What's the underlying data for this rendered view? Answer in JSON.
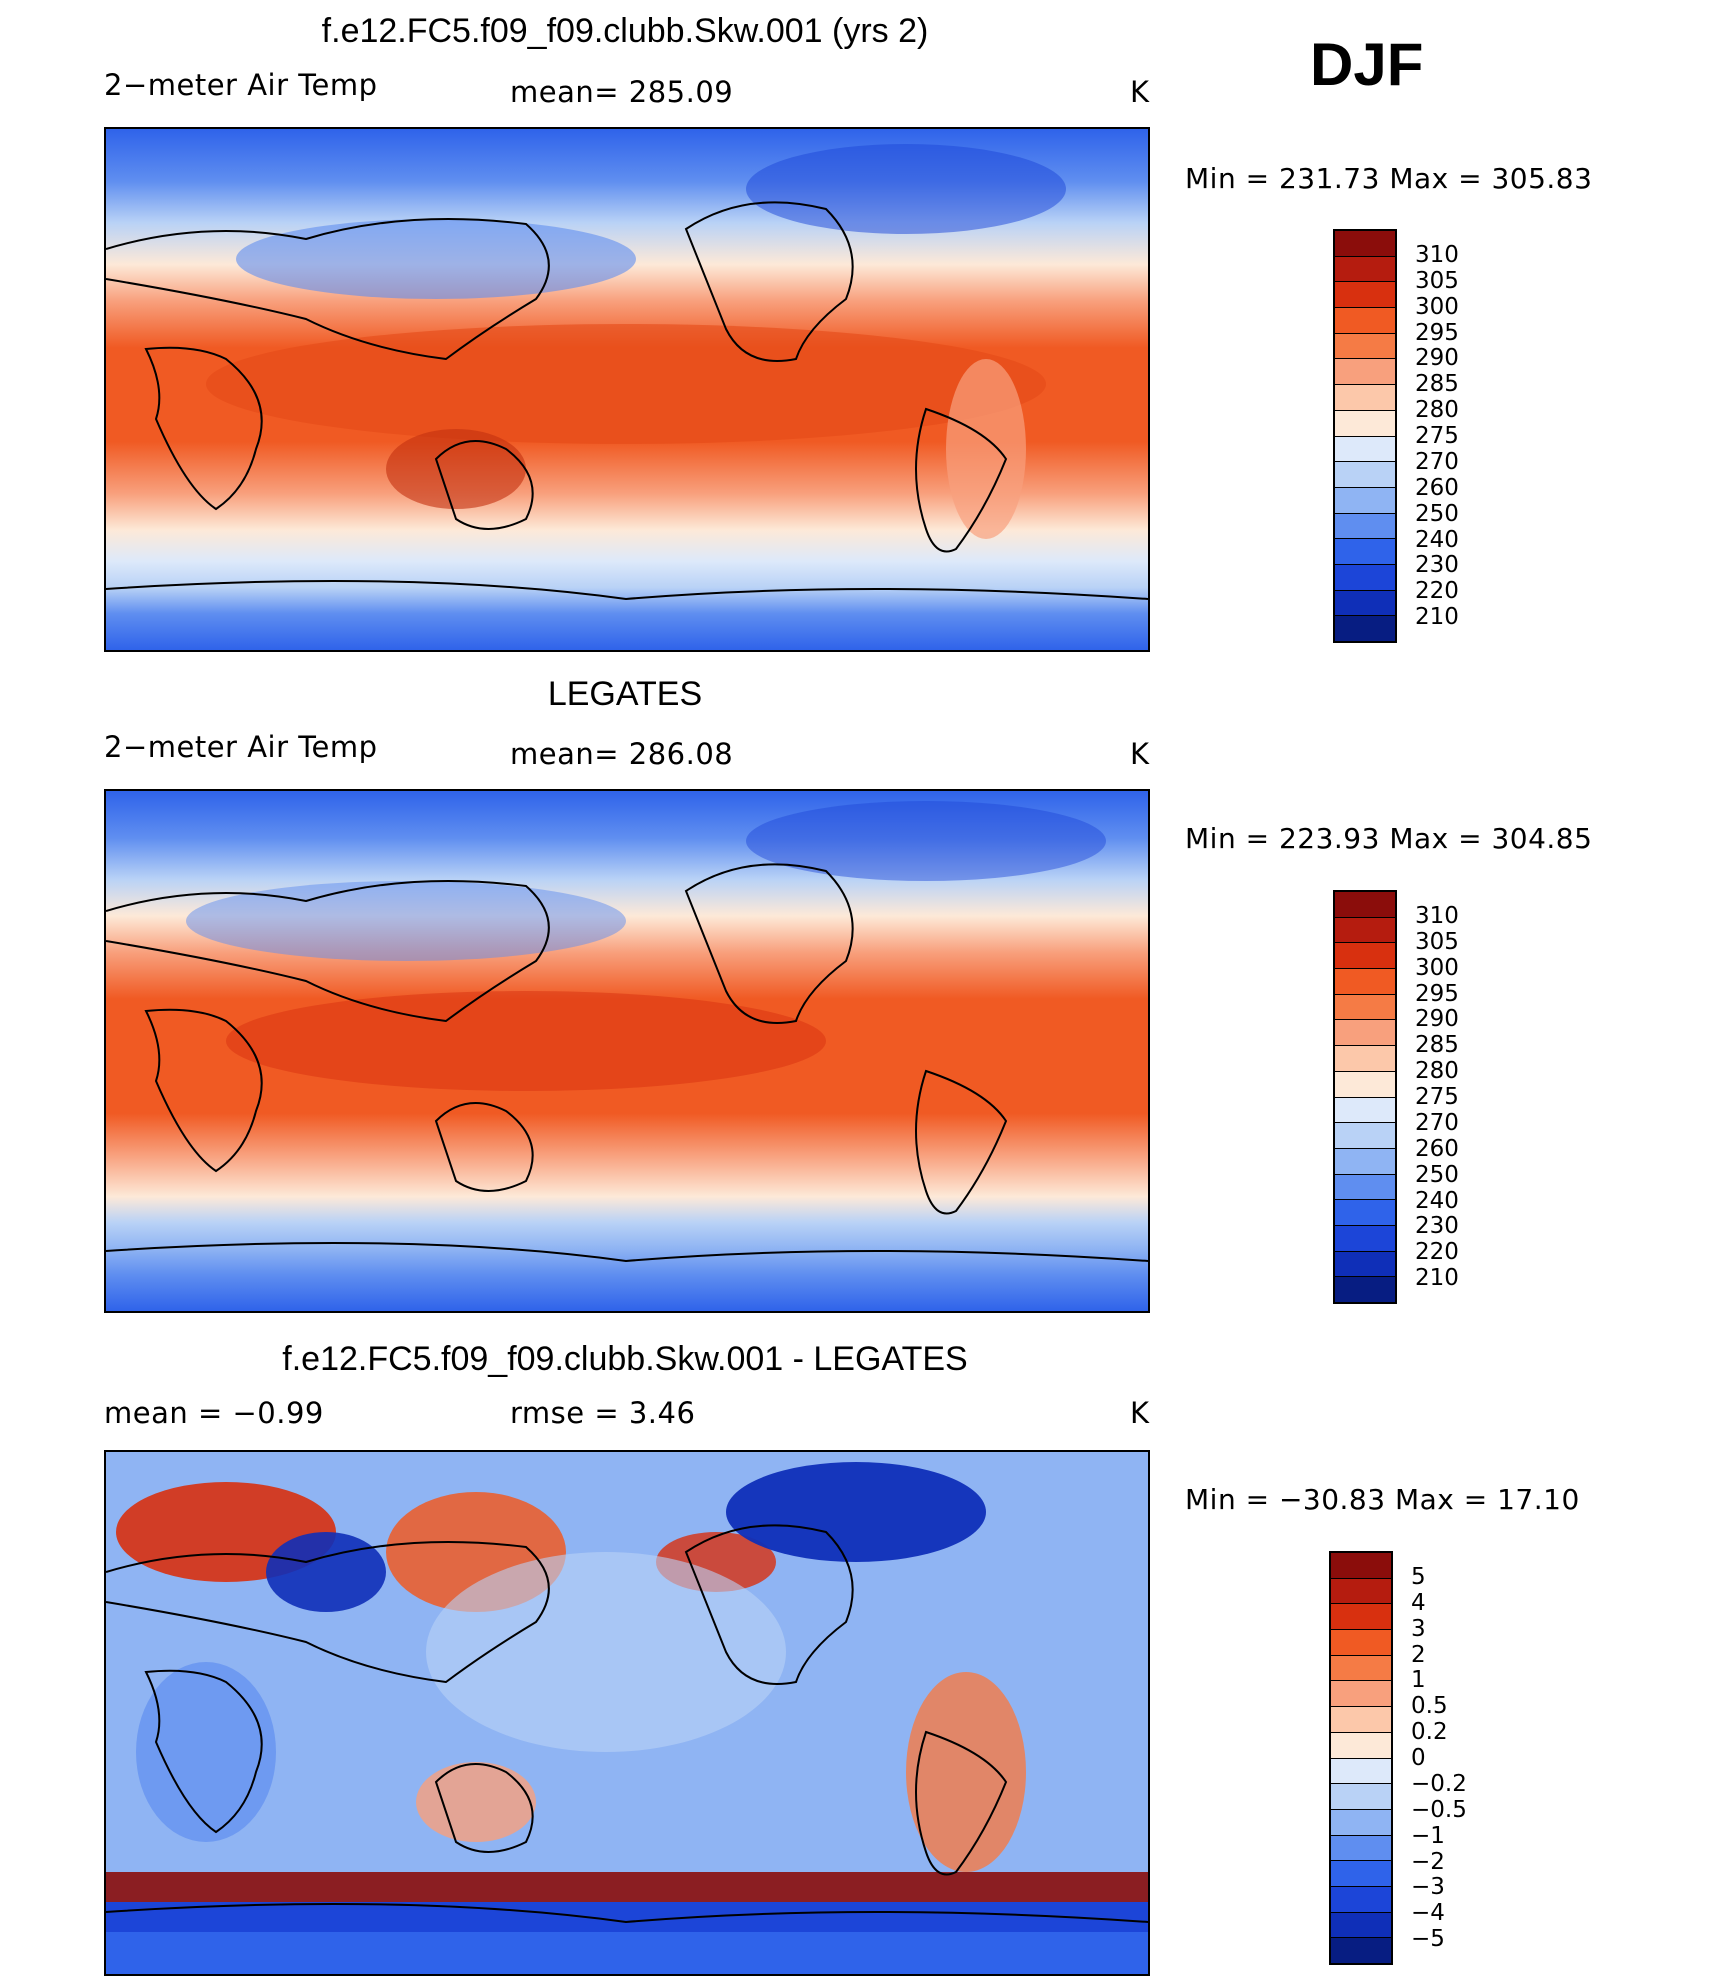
{
  "season": "DJF",
  "panels": [
    {
      "title": "f.e12.FC5.f09_f09.clubb.Skw.001 (yrs 2)",
      "left_label": "2−meter Air Temp",
      "center_label": "mean=  285.09",
      "units": "K",
      "minmax": "Min  =  231.73  Max  =  305.83",
      "kind": "absolute"
    },
    {
      "title": "LEGATES",
      "left_label": "2−meter Air Temp",
      "center_label": "mean=  286.08",
      "units": "K",
      "minmax": "Min  =  223.93  Max  =  304.85",
      "kind": "absolute"
    },
    {
      "title": "f.e12.FC5.f09_f09.clubb.Skw.001 - LEGATES",
      "left_label": "mean  =     −0.99",
      "center_label": "rmse  =     3.46",
      "units": "K",
      "minmax": "Min  =  −30.83  Max  =    17.10",
      "kind": "difference"
    }
  ],
  "colorbars": {
    "absolute": {
      "colors": [
        "#8b0d0b",
        "#b51c0f",
        "#d8300f",
        "#f05a23",
        "#f57b45",
        "#f8a07d",
        "#fcc8aa",
        "#fde9d8",
        "#dde9fa",
        "#b9d2f6",
        "#8fb4f3",
        "#5f8ef0",
        "#2f63ea",
        "#1c45d8",
        "#0f2fb8",
        "#071d82"
      ],
      "labels": [
        "310",
        "305",
        "300",
        "295",
        "290",
        "285",
        "280",
        "275",
        "270",
        "260",
        "250",
        "240",
        "230",
        "220",
        "210"
      ]
    },
    "difference": {
      "colors": [
        "#8b0d0b",
        "#b51c0f",
        "#d8300f",
        "#f05a23",
        "#f57b45",
        "#f8a07d",
        "#fcc8aa",
        "#fde9d8",
        "#dde9fa",
        "#b9d2f6",
        "#8fb4f3",
        "#5f8ef0",
        "#2f63ea",
        "#1c45d8",
        "#0f2fb8",
        "#071d82"
      ],
      "labels": [
        "5",
        "4",
        "3",
        "2",
        "1",
        "0.5",
        "0.2",
        "0",
        "−0.2",
        "−0.5",
        "−1",
        "−2",
        "−3",
        "−4",
        "−5"
      ]
    }
  }
}
